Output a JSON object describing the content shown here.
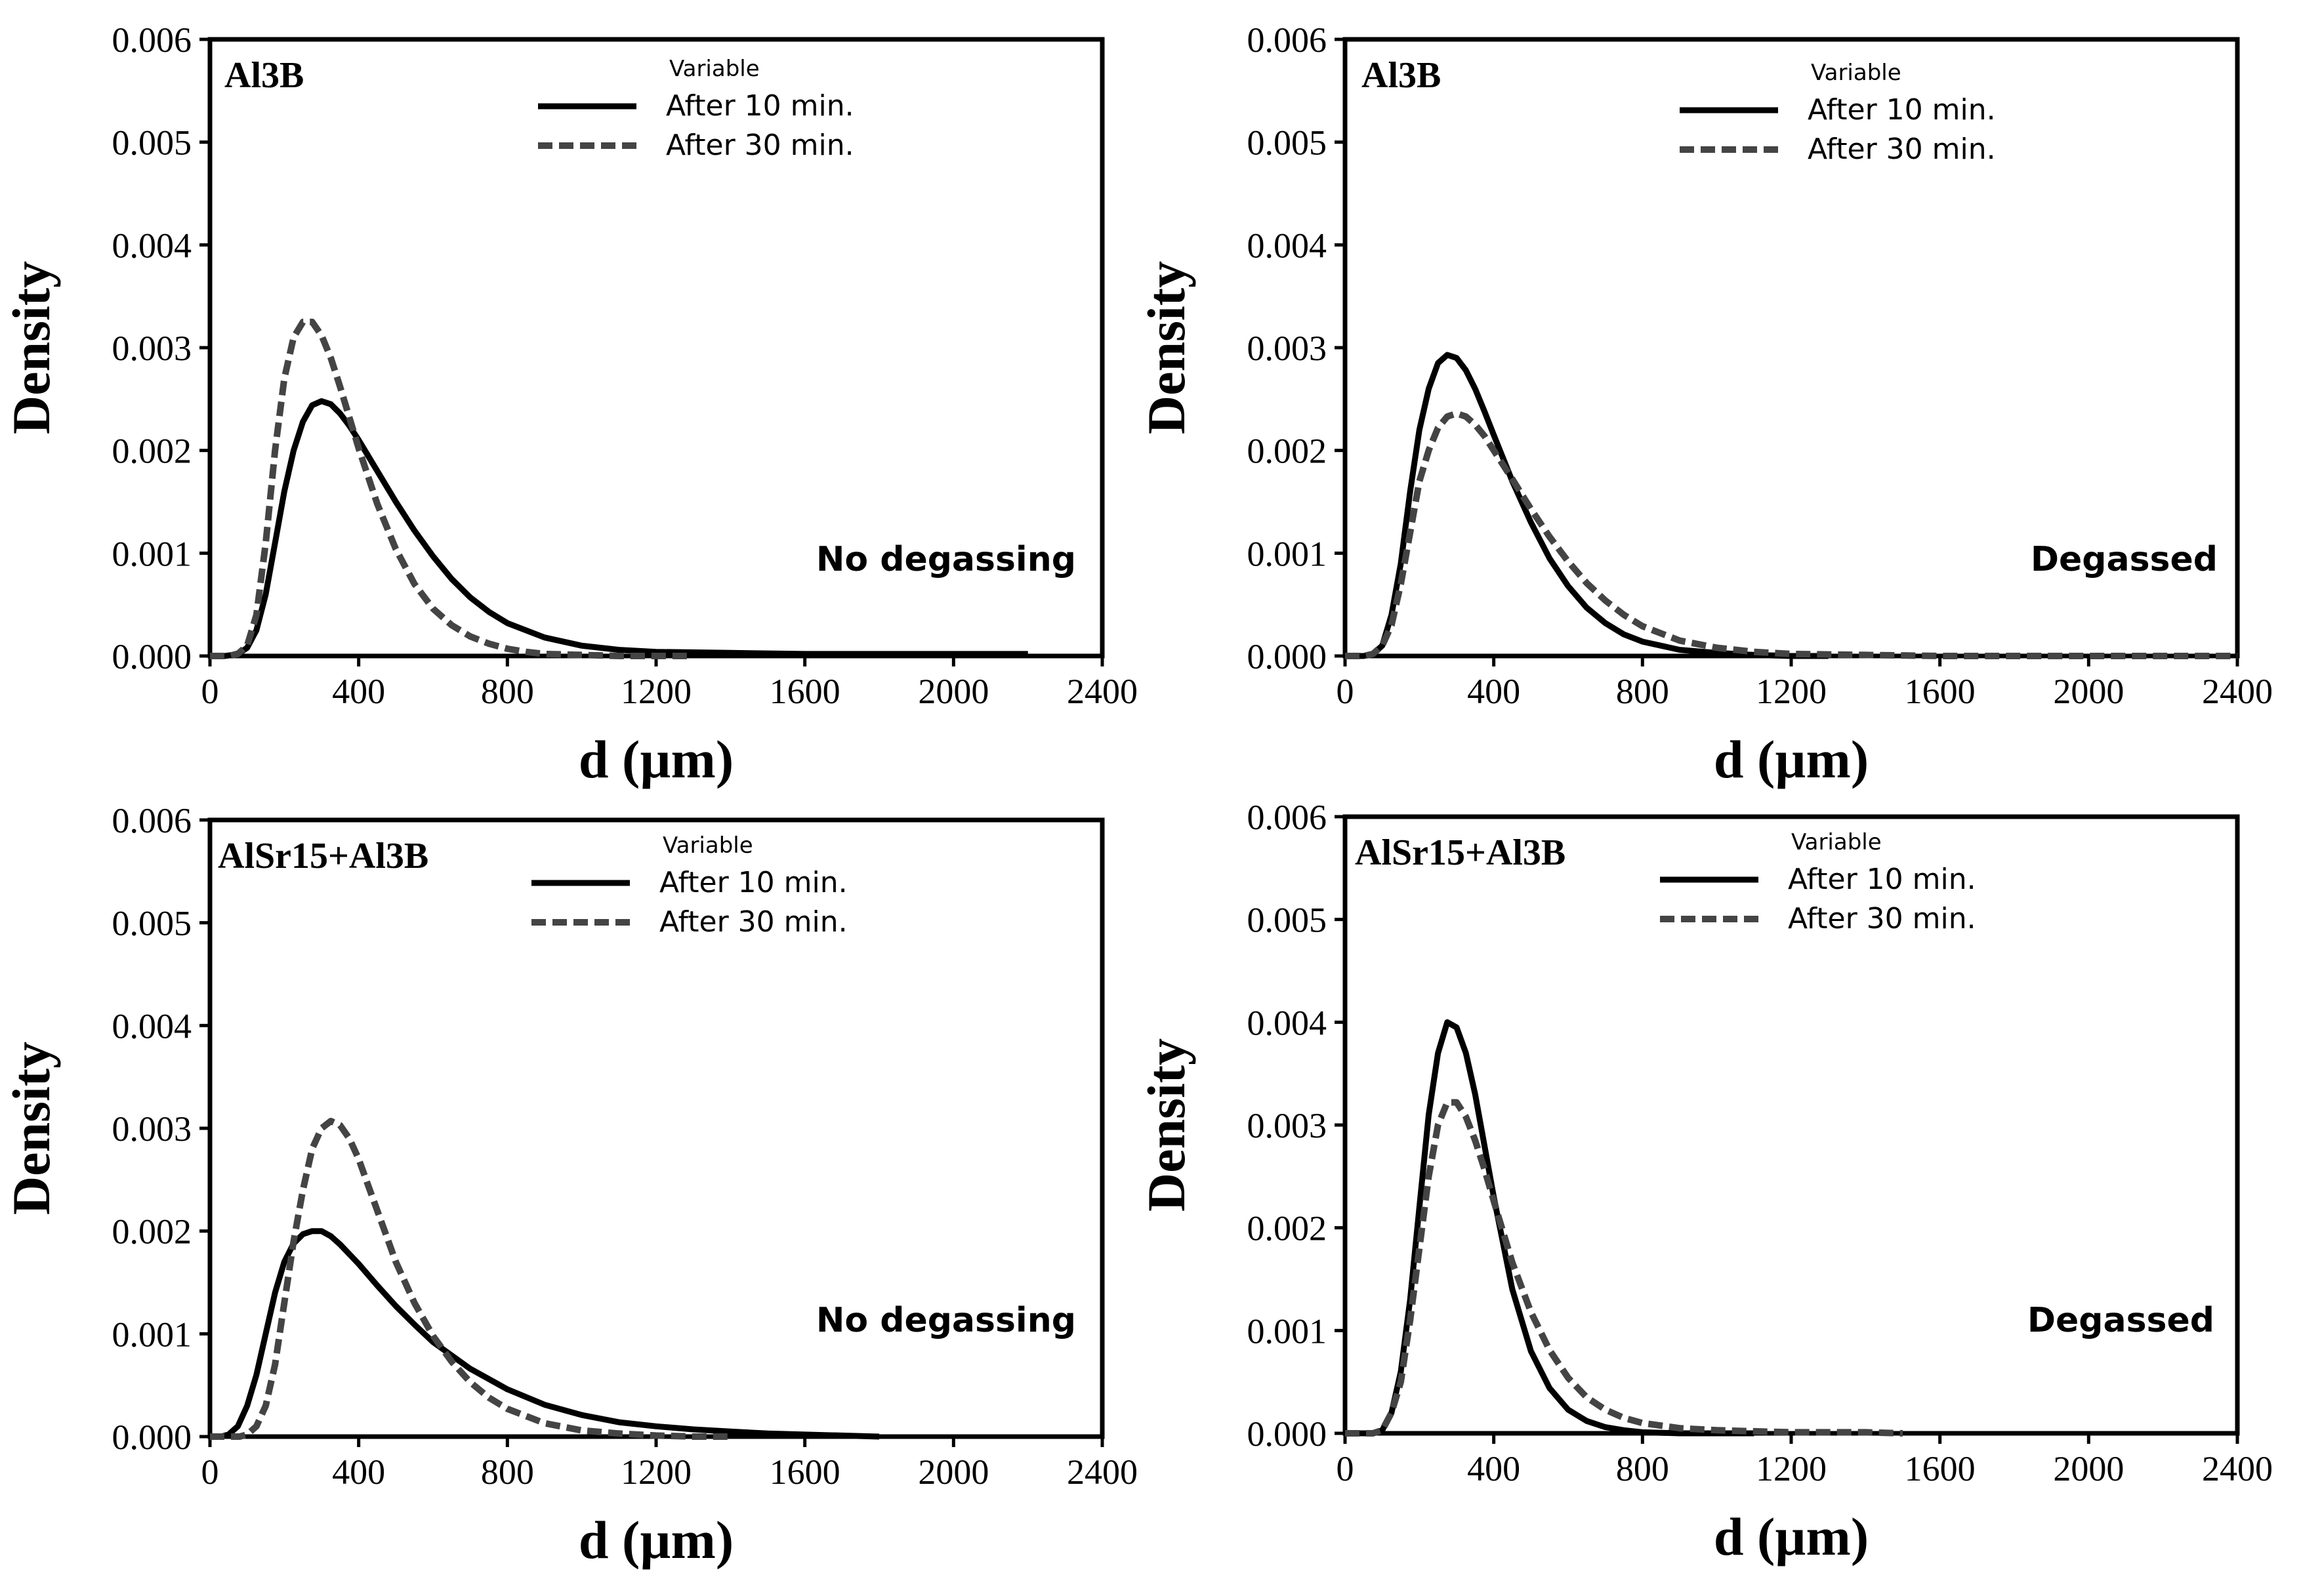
{
  "chart_data": [
    {
      "type": "line",
      "title": "Al3B",
      "annotation": "No degassing",
      "xlabel": "d (µm)",
      "ylabel": "Density",
      "xlim": [
        0,
        2400
      ],
      "ylim": [
        0,
        0.006
      ],
      "xticks": [
        "0",
        "400",
        "800",
        "1200",
        "1600",
        "2000",
        "2400"
      ],
      "yticks": [
        "0.000",
        "0.001",
        "0.002",
        "0.003",
        "0.004",
        "0.005",
        "0.006"
      ],
      "legend_title": "Variable",
      "series": [
        {
          "name": "After 10 min.",
          "style": "solid",
          "color": "#000000",
          "x": [
            0,
            40,
            60,
            80,
            100,
            125,
            150,
            175,
            200,
            225,
            250,
            275,
            300,
            325,
            350,
            375,
            400,
            450,
            500,
            550,
            600,
            650,
            700,
            750,
            800,
            900,
            1000,
            1100,
            1200,
            1400,
            1600,
            1800,
            2000,
            2200
          ],
          "y": [
            0,
            0,
            1e-05,
            3e-05,
            8e-05,
            0.00025,
            0.0006,
            0.0011,
            0.0016,
            0.002,
            0.00228,
            0.00244,
            0.00248,
            0.00245,
            0.00236,
            0.00224,
            0.0021,
            0.0018,
            0.0015,
            0.00122,
            0.00097,
            0.00075,
            0.00057,
            0.00043,
            0.00032,
            0.00018,
            0.0001,
            6e-05,
            4e-05,
            3e-05,
            2e-05,
            2e-05,
            2e-05,
            2e-05
          ]
        },
        {
          "name": "After 30 min.",
          "style": "dashed",
          "color": "#444444",
          "x": [
            0,
            50,
            75,
            100,
            125,
            150,
            175,
            200,
            225,
            250,
            275,
            300,
            325,
            350,
            375,
            400,
            450,
            500,
            550,
            600,
            650,
            700,
            750,
            800,
            850,
            900,
            1000,
            1100,
            1200,
            1300
          ],
          "y": [
            0,
            0,
            2e-05,
            0.0001,
            0.0004,
            0.0011,
            0.002,
            0.0027,
            0.0031,
            0.00325,
            0.00325,
            0.00312,
            0.0029,
            0.00262,
            0.00232,
            0.00202,
            0.00148,
            0.00104,
            0.0007,
            0.00046,
            0.0003,
            0.00019,
            0.00012,
            7e-05,
            4e-05,
            2e-05,
            1e-05,
            0,
            0,
            0
          ]
        }
      ]
    },
    {
      "type": "line",
      "title": "Al3B",
      "annotation": "Degassed",
      "xlabel": "d (µm)",
      "ylabel": "Density",
      "xlim": [
        0,
        2400
      ],
      "ylim": [
        0,
        0.006
      ],
      "xticks": [
        "0",
        "400",
        "800",
        "1200",
        "1600",
        "2000",
        "2400"
      ],
      "yticks": [
        "0.000",
        "0.001",
        "0.002",
        "0.003",
        "0.004",
        "0.005",
        "0.006"
      ],
      "legend_title": "Variable",
      "series": [
        {
          "name": "After 10 min.",
          "style": "solid",
          "color": "#000000",
          "x": [
            0,
            50,
            75,
            100,
            125,
            150,
            175,
            200,
            225,
            250,
            275,
            300,
            325,
            350,
            375,
            400,
            450,
            500,
            550,
            600,
            650,
            700,
            750,
            800,
            900,
            1000,
            1100,
            1200,
            1300
          ],
          "y": [
            0,
            0,
            2e-05,
            0.0001,
            0.0004,
            0.0009,
            0.0016,
            0.0022,
            0.0026,
            0.00285,
            0.00293,
            0.0029,
            0.00278,
            0.0026,
            0.00238,
            0.00215,
            0.0017,
            0.0013,
            0.00095,
            0.00068,
            0.00047,
            0.00032,
            0.00021,
            0.00014,
            6e-05,
            3e-05,
            1e-05,
            0,
            0
          ]
        },
        {
          "name": "After 30 min.",
          "style": "dashed",
          "color": "#444444",
          "x": [
            0,
            50,
            75,
            100,
            125,
            150,
            175,
            200,
            225,
            250,
            275,
            300,
            325,
            350,
            375,
            400,
            450,
            500,
            550,
            600,
            650,
            700,
            750,
            800,
            900,
            1000,
            1100,
            1200,
            1400,
            1600,
            1800,
            2000,
            2200,
            2400
          ],
          "y": [
            0,
            0,
            2e-05,
            0.0001,
            0.0003,
            0.0007,
            0.0012,
            0.0017,
            0.002,
            0.00222,
            0.00233,
            0.00236,
            0.00233,
            0.00225,
            0.00214,
            0.002,
            0.00172,
            0.00143,
            0.00116,
            0.00092,
            0.00071,
            0.00054,
            0.0004,
            0.00029,
            0.00015,
            8e-05,
            4e-05,
            2e-05,
            1e-05,
            0,
            0,
            0,
            0,
            0
          ]
        }
      ]
    },
    {
      "type": "line",
      "title": "AlSr15+Al3B",
      "annotation": "No degassing",
      "xlabel": "d (µm)",
      "ylabel": "Density",
      "xlim": [
        0,
        2400
      ],
      "ylim": [
        0,
        0.006
      ],
      "xticks": [
        "0",
        "400",
        "800",
        "1200",
        "1600",
        "2000",
        "2400"
      ],
      "yticks": [
        "0.000",
        "0.001",
        "0.002",
        "0.003",
        "0.004",
        "0.005",
        "0.006"
      ],
      "legend_title": "Variable",
      "series": [
        {
          "name": "After 10 min.",
          "style": "solid",
          "color": "#000000",
          "x": [
            0,
            30,
            50,
            75,
            100,
            125,
            150,
            175,
            200,
            225,
            250,
            275,
            300,
            325,
            350,
            400,
            450,
            500,
            550,
            600,
            700,
            800,
            900,
            1000,
            1100,
            1200,
            1300,
            1400,
            1500,
            1600,
            1700,
            1800
          ],
          "y": [
            0,
            0,
            2e-05,
            0.0001,
            0.0003,
            0.0006,
            0.001,
            0.0014,
            0.0017,
            0.00188,
            0.00197,
            0.002,
            0.002,
            0.00195,
            0.00187,
            0.00168,
            0.00147,
            0.00127,
            0.00109,
            0.00092,
            0.00066,
            0.00046,
            0.00031,
            0.00021,
            0.00014,
            0.0001,
            7e-05,
            5e-05,
            3e-05,
            2e-05,
            1e-05,
            0
          ]
        },
        {
          "name": "After 30 min.",
          "style": "dashed",
          "color": "#444444",
          "x": [
            0,
            80,
            100,
            125,
            150,
            175,
            200,
            225,
            250,
            275,
            300,
            325,
            350,
            375,
            400,
            425,
            450,
            500,
            550,
            600,
            650,
            700,
            750,
            800,
            900,
            1000,
            1100,
            1200,
            1300,
            1400
          ],
          "y": [
            0,
            0,
            2e-05,
            0.0001,
            0.0003,
            0.0007,
            0.0013,
            0.0019,
            0.0024,
            0.0028,
            0.003,
            0.00307,
            0.00303,
            0.0029,
            0.0027,
            0.00245,
            0.0022,
            0.0017,
            0.0013,
            0.00098,
            0.00073,
            0.00053,
            0.00038,
            0.00027,
            0.00013,
            6e-05,
            3e-05,
            1e-05,
            0,
            0
          ]
        }
      ]
    },
    {
      "type": "line",
      "title": "AlSr15+Al3B",
      "annotation": "Degassed",
      "xlabel": "d (µm)",
      "ylabel": "Density",
      "xlim": [
        0,
        2400
      ],
      "ylim": [
        0,
        0.006
      ],
      "xticks": [
        "0",
        "400",
        "800",
        "1200",
        "1600",
        "2000",
        "2400"
      ],
      "yticks": [
        "0.000",
        "0.001",
        "0.002",
        "0.003",
        "0.004",
        "0.005",
        "0.006"
      ],
      "legend_title": "Variable",
      "series": [
        {
          "name": "After 10 min.",
          "style": "solid",
          "color": "#000000",
          "x": [
            0,
            75,
            100,
            125,
            150,
            175,
            200,
            225,
            250,
            275,
            300,
            325,
            350,
            375,
            400,
            450,
            500,
            550,
            600,
            650,
            700,
            750,
            800,
            900,
            1000,
            1100
          ],
          "y": [
            0,
            0,
            3e-05,
            0.0002,
            0.0006,
            0.0013,
            0.0022,
            0.0031,
            0.0037,
            0.004,
            0.00395,
            0.0037,
            0.0033,
            0.0028,
            0.0023,
            0.0014,
            0.0008,
            0.00044,
            0.00023,
            0.00012,
            6e-05,
            3e-05,
            1e-05,
            0,
            0,
            0
          ]
        },
        {
          "name": "After 30 min.",
          "style": "dashed",
          "color": "#444444",
          "x": [
            0,
            75,
            100,
            125,
            150,
            175,
            200,
            225,
            250,
            275,
            300,
            325,
            350,
            375,
            400,
            450,
            500,
            550,
            600,
            650,
            700,
            750,
            800,
            900,
            1000,
            1100,
            1200,
            1300,
            1400,
            1500
          ],
          "y": [
            0,
            0,
            3e-05,
            0.0002,
            0.0005,
            0.0011,
            0.0018,
            0.0025,
            0.003,
            0.00322,
            0.00322,
            0.00308,
            0.00285,
            0.00257,
            0.00226,
            0.00166,
            0.00118,
            0.00081,
            0.00054,
            0.00035,
            0.00023,
            0.00015,
            0.0001,
            5e-05,
            3e-05,
            2e-05,
            1e-05,
            1e-05,
            1e-05,
            0
          ]
        }
      ]
    }
  ]
}
